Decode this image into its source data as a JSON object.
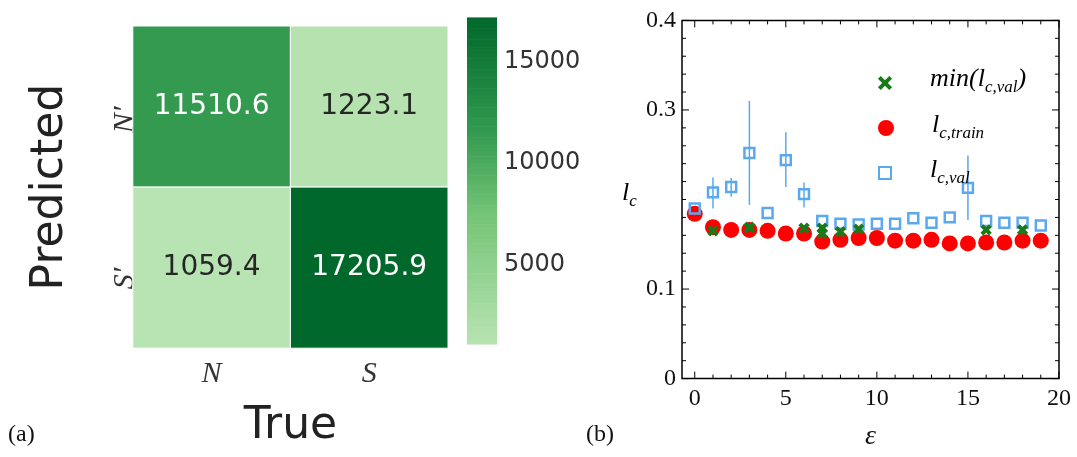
{
  "chart_data": [
    {
      "type": "heatmap",
      "xlabel": "True",
      "ylabel": "Predicted",
      "categories": [
        "N",
        "S"
      ],
      "y_categories": [
        "N′",
        "S′"
      ],
      "cells": [
        [
          11510.6,
          1223.1
        ],
        [
          1059.4,
          17205.9
        ]
      ],
      "clim": [
        1059.4,
        17205.9
      ],
      "cticks": [
        5000,
        10000,
        15000
      ],
      "data_labels": true,
      "annotations": [
        "(a)"
      ]
    },
    {
      "type": "scatter",
      "xlabel": "ε",
      "ylabel": "l$_{c}$",
      "legend": "top right",
      "annotations": [
        "(b)"
      ],
      "xlim": [
        -0.7,
        20
      ],
      "xticks": [
        0,
        {
          "value": 1,
          "label": null
        },
        {
          "value": 2,
          "label": null
        },
        {
          "value": 3,
          "label": null
        },
        {
          "value": 4,
          "label": null
        },
        5,
        {
          "value": 6,
          "label": null
        },
        {
          "value": 7,
          "label": null
        },
        {
          "value": 8,
          "label": null
        },
        {
          "value": 9,
          "label": null
        },
        10,
        {
          "value": 11,
          "label": null
        },
        {
          "value": 12,
          "label": null
        },
        {
          "value": 13,
          "label": null
        },
        {
          "value": 14,
          "label": null
        },
        15,
        {
          "value": 16,
          "label": null
        },
        {
          "value": 17,
          "label": null
        },
        {
          "value": 18,
          "label": null
        },
        {
          "value": 19,
          "label": null
        },
        20
      ],
      "ylim": [
        0,
        0.4
      ],
      "yticks": [
        0,
        {
          "value": 0.02,
          "label": null
        },
        {
          "value": 0.04,
          "label": null
        },
        {
          "value": 0.06,
          "label": null
        },
        {
          "value": 0.08,
          "label": null
        },
        0.1,
        {
          "value": 0.12,
          "label": null
        },
        {
          "value": 0.14,
          "label": null
        },
        {
          "value": 0.16,
          "label": null
        },
        {
          "value": 0.18,
          "label": null
        },
        {
          "value": 0.2,
          "label": null
        },
        {
          "value": 0.22,
          "label": null
        },
        {
          "value": 0.24,
          "label": null
        },
        {
          "value": 0.26,
          "label": null
        },
        {
          "value": 0.28,
          "label": null
        },
        0.3,
        {
          "value": 0.32,
          "label": null
        },
        {
          "value": 0.34,
          "label": null
        },
        {
          "value": 0.36,
          "label": null
        },
        {
          "value": 0.38,
          "label": null
        },
        0.4
      ],
      "series": [
        {
          "name": "min(l$_{c,val}$)",
          "color": "#1a7a1a",
          "marker": "cross",
          "x": [
            1,
            3,
            6,
            7,
            7,
            8,
            9,
            16,
            18
          ],
          "values": [
            0.165,
            0.169,
            0.168,
            0.168,
            0.162,
            0.164,
            0.167,
            0.166,
            0.166
          ]
        },
        {
          "name": "l$_{c,train}$",
          "color": "#ff0000",
          "marker": "circle",
          "x": [
            0,
            1,
            2,
            3,
            4,
            5,
            6,
            7,
            8,
            9,
            10,
            11,
            12,
            13,
            14,
            15,
            16,
            17,
            18,
            19
          ],
          "values": [
            0.184,
            0.169,
            0.166,
            0.166,
            0.165,
            0.162,
            0.162,
            0.153,
            0.155,
            0.157,
            0.157,
            0.154,
            0.154,
            0.155,
            0.151,
            0.151,
            0.152,
            0.152,
            0.154,
            0.154
          ]
        },
        {
          "name": "l$_{c,val}$",
          "color": "#5aa9f0",
          "marker": "square",
          "x": [
            0,
            1,
            2,
            3,
            4,
            5,
            6,
            7,
            8,
            9,
            10,
            11,
            12,
            13,
            14,
            15,
            16,
            17,
            18,
            19
          ],
          "values": [
            0.19,
            0.208,
            0.214,
            0.252,
            0.185,
            0.244,
            0.206,
            0.176,
            0.173,
            0.172,
            0.173,
            0.173,
            0.179,
            0.174,
            0.18,
            0.213,
            0.176,
            0.174,
            0.174,
            0.171
          ],
          "errors": [
            null,
            [
              0.19,
              0.2245
            ],
            [
              0.203,
              0.224
            ],
            [
              0.194,
              0.31
            ],
            null,
            [
              0.214,
              0.275
            ],
            [
              0.191,
              0.219
            ],
            null,
            null,
            null,
            null,
            null,
            null,
            null,
            null,
            [
              0.177,
              0.249
            ],
            null,
            null,
            null,
            null
          ]
        }
      ]
    }
  ]
}
